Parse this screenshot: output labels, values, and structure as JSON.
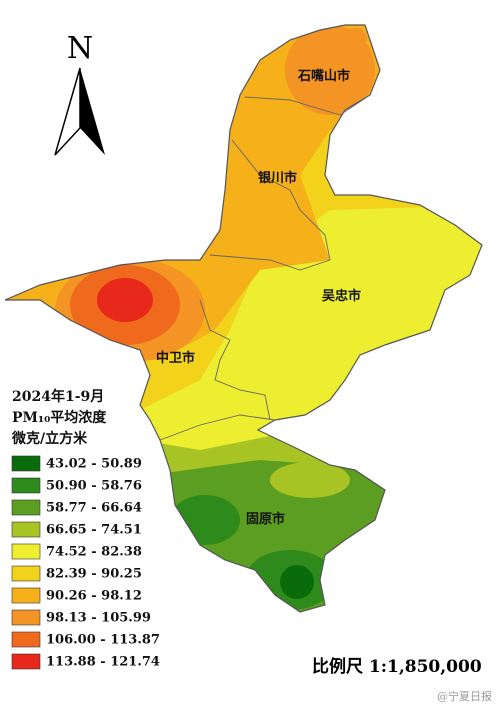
{
  "north": "N",
  "cities": [
    "石嘴山市",
    "银川市",
    "吴忠市",
    "中卫市",
    "固原市"
  ],
  "legend": {
    "title": [
      "2024年1-9月",
      "PM₁₀平均浓度",
      "微克/立方米"
    ],
    "items": [
      {
        "label": "43.02 - 50.89",
        "color": "#0a6b0a"
      },
      {
        "label": "50.90 - 58.76",
        "color": "#2f8a1c"
      },
      {
        "label": "58.77 - 66.64",
        "color": "#5c9e22"
      },
      {
        "label": "66.65 - 74.51",
        "color": "#a8c424"
      },
      {
        "label": "74.52 - 82.38",
        "color": "#eeee30"
      },
      {
        "label": "82.39 - 90.25",
        "color": "#f2d21a"
      },
      {
        "label": "90.26 - 98.12",
        "color": "#f5b01a"
      },
      {
        "label": "98.13 - 105.99",
        "color": "#f39424"
      },
      {
        "label": "106.00 - 113.87",
        "color": "#f06a1e"
      },
      {
        "label": "113.88 - 121.74",
        "color": "#e8281a"
      }
    ]
  },
  "scale": "比例尺 1:1,850,000",
  "watermark": "@宁夏日报"
}
